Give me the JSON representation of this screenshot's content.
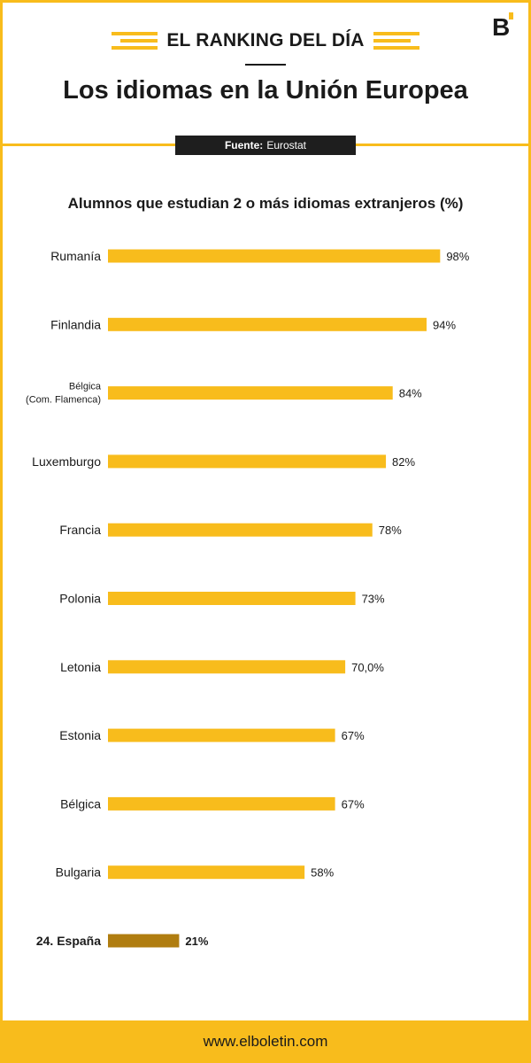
{
  "header": {
    "kicker": "EL RANKING DEL DÍA",
    "title": "Los idiomas en la Unión Europea",
    "source_label": "Fuente:",
    "source_value": "Eurostat",
    "logo_icon": "boletin-logo-icon"
  },
  "colors": {
    "bar": "#f8bc1c",
    "highlight_bar": "#b07d10",
    "text": "#1a1a1a"
  },
  "chart_data": {
    "type": "bar",
    "orientation": "horizontal",
    "title": "Alumnos que estudian 2 o más idiomas extranjeros (%)",
    "xlim": [
      0,
      100
    ],
    "categories": [
      [
        "Rumanía"
      ],
      [
        "Finlandia"
      ],
      [
        "Bélgica",
        "(Com. Flamenca)"
      ],
      [
        "Luxemburgo"
      ],
      [
        "Francia"
      ],
      [
        "Polonia"
      ],
      [
        "Letonia"
      ],
      [
        "Estonia"
      ],
      [
        "Bélgica"
      ],
      [
        "Bulgaria"
      ],
      [
        "24. España"
      ]
    ],
    "values": [
      98,
      94,
      84,
      82,
      78,
      73,
      70,
      67,
      67,
      58,
      21
    ],
    "value_labels": [
      "98%",
      "94%",
      "84%",
      "82%",
      "78%",
      "73%",
      "70,0%",
      "67%",
      "67%",
      "58%",
      "21%"
    ],
    "highlight_index": 10,
    "grid": false,
    "legend": "none"
  },
  "footer": {
    "url": "www.elboletin.com"
  }
}
